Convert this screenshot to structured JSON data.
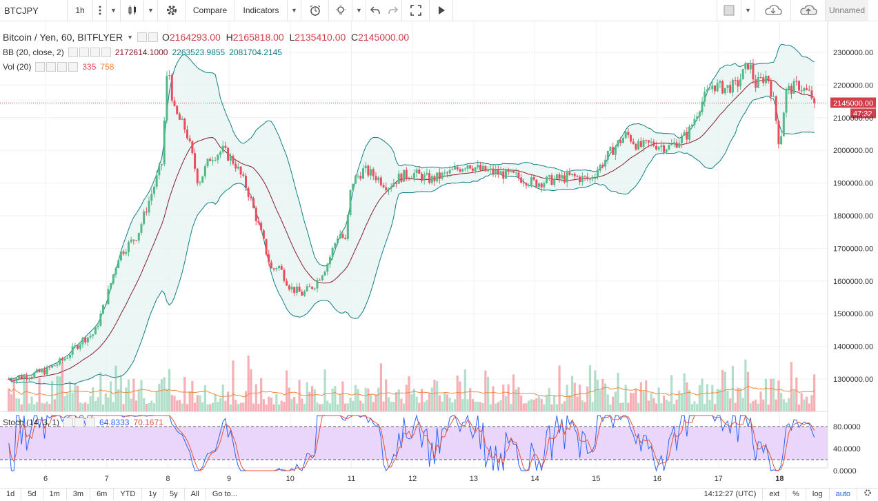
{
  "toolbar": {
    "symbol": "BTCJPY",
    "interval": "1h",
    "compare": "Compare",
    "indicators": "Indicators",
    "layout_name": "Unnamed"
  },
  "legend": {
    "title": "Bitcoin / Yen, 60, BITFLYER",
    "o_key": "O",
    "o": "2164293.00",
    "h_key": "H",
    "h": "2165818.00",
    "l_key": "L",
    "l": "2135410.00",
    "c_key": "C",
    "c": "2145000.00",
    "bb_label": "BB (20, close, 2)",
    "bb_mid": "2172614.1000",
    "bb_upper": "2263523.9855",
    "bb_lower": "2081704.2145",
    "vol_label": "Vol (20)",
    "vol_val": "335",
    "vol_ma": "758",
    "stoch_label": "Stoch (14, 3, 1)",
    "stoch_k": "64.8333",
    "stoch_d": "70.1671"
  },
  "price_axis": {
    "ticks": [
      "2300000.00",
      "2200000.00",
      "2100000.00",
      "2000000.00",
      "1900000.00",
      "1800000.00",
      "1700000.00",
      "1600000.00",
      "1500000.00",
      "1400000.00",
      "1300000.00"
    ],
    "last_price": "2145000.00",
    "countdown": "47:32"
  },
  "stoch_axis": {
    "ticks": [
      "80.0000",
      "40.0000",
      "0.0000"
    ]
  },
  "time_axis": {
    "ticks": [
      "6",
      "7",
      "8",
      "9",
      "10",
      "11",
      "12",
      "13",
      "14",
      "15",
      "16",
      "17",
      "18"
    ]
  },
  "bottom": {
    "ranges": [
      "1d",
      "5d",
      "1m",
      "3m",
      "6m",
      "YTD",
      "1y",
      "5y",
      "All"
    ],
    "goto": "Go to...",
    "clock": "14:12:27 (UTC)",
    "ext": "ext",
    "pct": "%",
    "log": "log",
    "auto": "auto"
  },
  "colors": {
    "up": "#53b987",
    "down": "#eb4d5c",
    "bb_band": "#0e7e83",
    "bb_fill": "#e6f4f2",
    "bb_mid": "#8b1b2b",
    "vol_ma": "#f0883e",
    "stoch_k": "#2962ff",
    "stoch_d": "#e4523b",
    "stoch_fill": "#e8d2fa",
    "last_price": "#d1404a"
  },
  "chart_data": {
    "type": "candlestick",
    "symbol": "BTCJPY",
    "interval": "60",
    "price_path": [
      [
        5.4,
        1300000
      ],
      [
        5.7,
        1310000
      ],
      [
        6.0,
        1325000
      ],
      [
        6.3,
        1360000
      ],
      [
        6.6,
        1420000
      ],
      [
        6.8,
        1440000
      ],
      [
        7.0,
        1550000
      ],
      [
        7.2,
        1680000
      ],
      [
        7.5,
        1740000
      ],
      [
        7.7,
        1850000
      ],
      [
        7.9,
        1960000
      ],
      [
        8.0,
        2270000
      ],
      [
        8.1,
        2120000
      ],
      [
        8.3,
        2060000
      ],
      [
        8.5,
        1900000
      ],
      [
        8.7,
        1980000
      ],
      [
        8.9,
        2000000
      ],
      [
        9.1,
        1960000
      ],
      [
        9.3,
        1880000
      ],
      [
        9.5,
        1760000
      ],
      [
        9.7,
        1630000
      ],
      [
        9.8,
        1650000
      ],
      [
        10.0,
        1580000
      ],
      [
        10.2,
        1560000
      ],
      [
        10.4,
        1590000
      ],
      [
        10.6,
        1650000
      ],
      [
        10.8,
        1750000
      ],
      [
        10.9,
        1720000
      ],
      [
        11.0,
        1900000
      ],
      [
        11.2,
        1940000
      ],
      [
        11.4,
        1920000
      ],
      [
        11.6,
        1890000
      ],
      [
        11.8,
        1920000
      ],
      [
        12.0,
        1930000
      ],
      [
        12.3,
        1910000
      ],
      [
        12.6,
        1930000
      ],
      [
        12.9,
        1960000
      ],
      [
        13.1,
        1940000
      ],
      [
        13.4,
        1930000
      ],
      [
        13.7,
        1920000
      ],
      [
        14.0,
        1900000
      ],
      [
        14.3,
        1910000
      ],
      [
        14.6,
        1920000
      ],
      [
        14.9,
        1910000
      ],
      [
        15.1,
        1960000
      ],
      [
        15.3,
        2010000
      ],
      [
        15.5,
        2050000
      ],
      [
        15.7,
        2010000
      ],
      [
        15.9,
        2020000
      ],
      [
        16.2,
        2010000
      ],
      [
        16.5,
        2050000
      ],
      [
        16.7,
        2140000
      ],
      [
        16.9,
        2200000
      ],
      [
        17.1,
        2190000
      ],
      [
        17.3,
        2200000
      ],
      [
        17.5,
        2270000
      ],
      [
        17.6,
        2200000
      ],
      [
        17.8,
        2230000
      ],
      [
        17.9,
        2150000
      ],
      [
        18.0,
        2010000
      ],
      [
        18.1,
        2180000
      ],
      [
        18.3,
        2200000
      ],
      [
        18.5,
        2170000
      ],
      [
        18.6,
        2145000
      ]
    ],
    "last_close": 2145000,
    "y_range": [
      1220000,
      2340000
    ],
    "x_range_days": [
      5.4,
      18.6
    ],
    "stoch_range": [
      0,
      100
    ]
  }
}
